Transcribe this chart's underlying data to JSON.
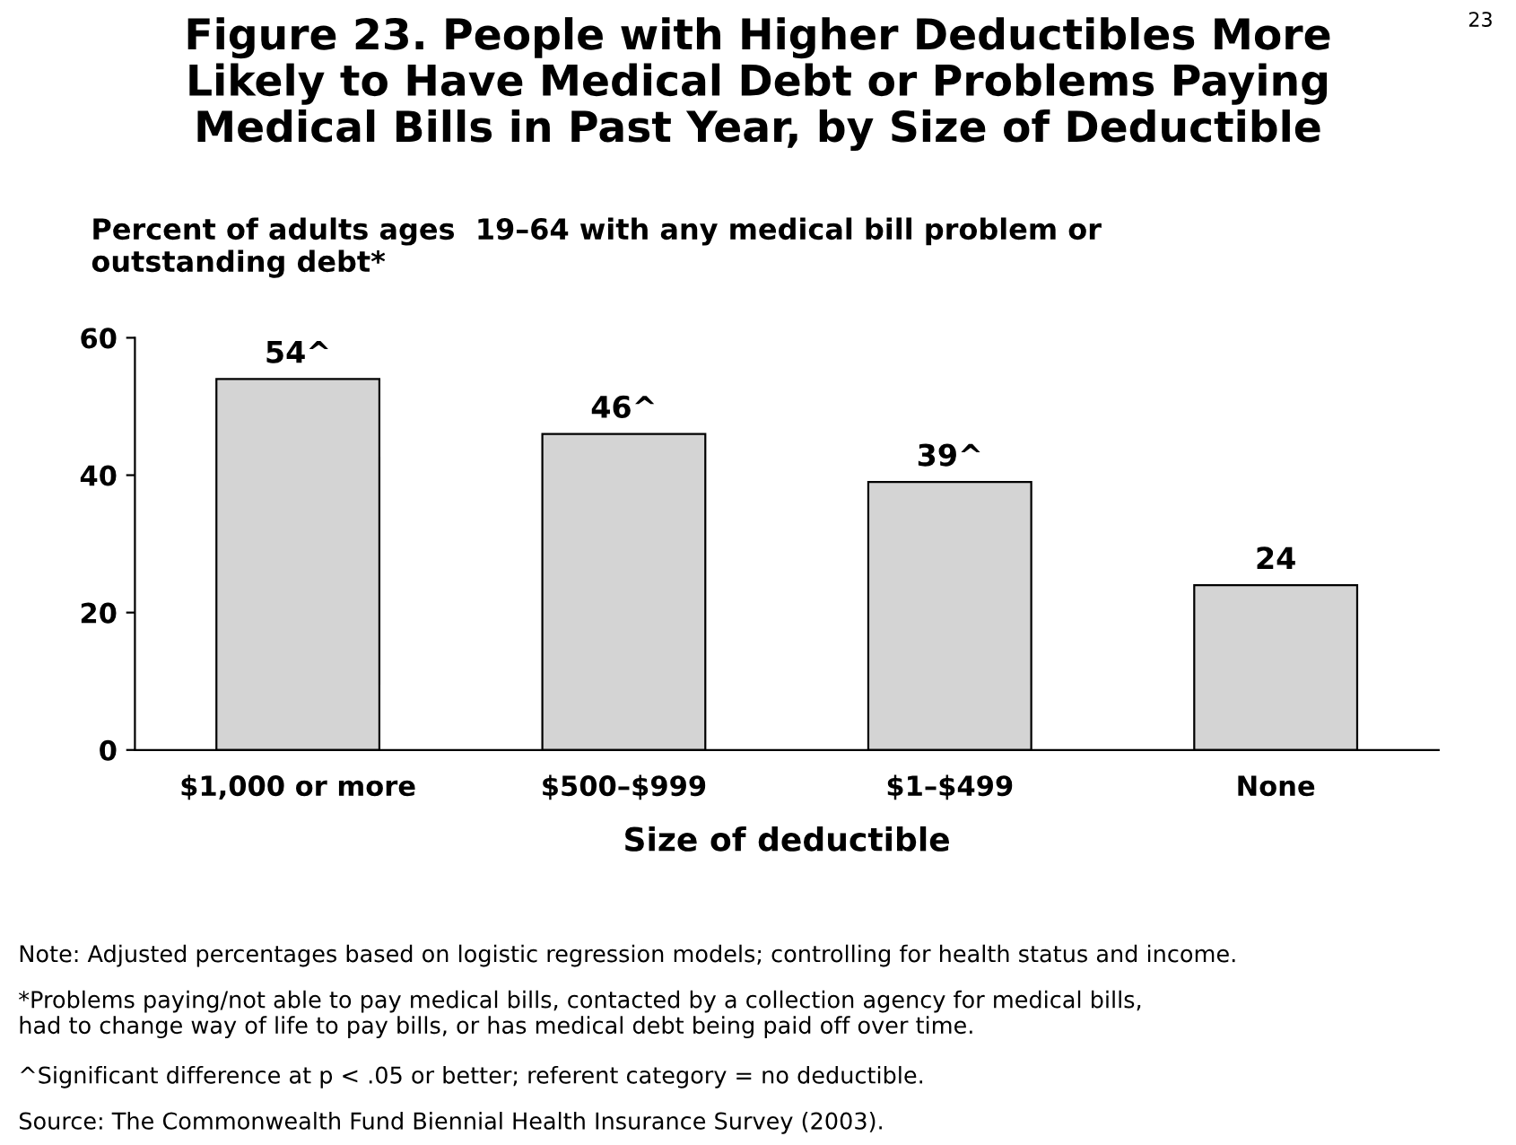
{
  "chart_data": {
    "type": "bar",
    "title": "Figure 23. People with Higher Deductibles More\nLikely to Have Medical Debt or Problems Paying\nMedical Bills in Past Year, by Size of Deductible",
    "subtitle": "Percent of adults ages  19–64 with any medical bill problem or\noutstanding debt*",
    "xlabel": "Size of deductible",
    "categories": [
      "$1,000 or more",
      "$500–$999",
      "$1–$499",
      "None"
    ],
    "values": [
      54,
      46,
      39,
      24
    ],
    "value_labels": [
      "54^",
      "46^",
      "39^",
      "24"
    ],
    "color": "#d4d4d4",
    "ylim": [
      0,
      60
    ],
    "yticks": [
      0,
      20,
      40,
      60
    ],
    "grid": false,
    "legend": false,
    "annotations": [
      "23",
      "Note: Adjusted percentages based on logistic regression models; controlling for health status and income.",
      "*Problems paying/not able to pay medical bills, contacted by a collection agency for medical bills,\nhad to change way of life to pay bills, or has medical debt being paid off over time.",
      "^Significant difference at p < .05 or better; referent category = no deductible.",
      "Source: The Commonwealth Fund Biennial Health Insurance Survey (2003)."
    ]
  }
}
